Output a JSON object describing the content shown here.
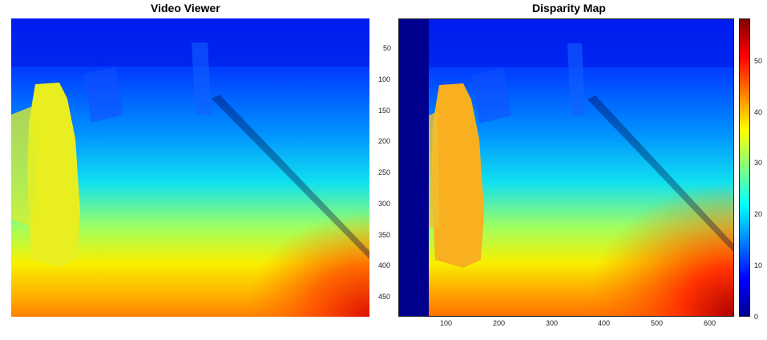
{
  "left_panel": {
    "title": "Video Viewer",
    "image_description_icon": "depth-map-image"
  },
  "right_panel": {
    "title": "Disparity Map",
    "x_ticks": [
      "100",
      "200",
      "300",
      "400",
      "500",
      "600"
    ],
    "y_ticks": [
      "50",
      "100",
      "150",
      "200",
      "250",
      "300",
      "350",
      "400",
      "450"
    ],
    "x_range": [
      1,
      640
    ],
    "y_range": [
      1,
      480
    ]
  },
  "colorbar": {
    "ticks": [
      "0",
      "10",
      "20",
      "30",
      "40",
      "50"
    ],
    "range": [
      0,
      58
    ],
    "colormap": "jet"
  },
  "colors": {
    "deep_blue": "#00008f",
    "blue": "#0020ff",
    "cyan": "#00e0ff",
    "yellow": "#f8f000",
    "orange": "#ff9000",
    "red": "#d01000",
    "dark_red": "#800000"
  }
}
